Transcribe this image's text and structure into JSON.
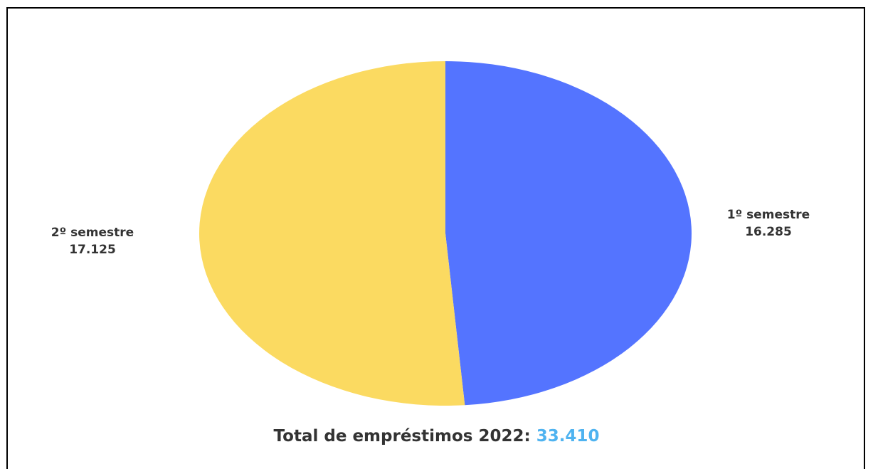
{
  "chart_data": {
    "type": "pie",
    "slices": [
      {
        "label": "1º semestre",
        "value_label": "16.285",
        "value": 16285,
        "color": "#5474ff"
      },
      {
        "label": "2º semestre",
        "value_label": "17.125",
        "value": 17125,
        "color": "#fbda61"
      }
    ],
    "total": {
      "text": "Total de empréstimos 2022:",
      "value": "33.410",
      "value_color": "#4fb3f0"
    }
  }
}
